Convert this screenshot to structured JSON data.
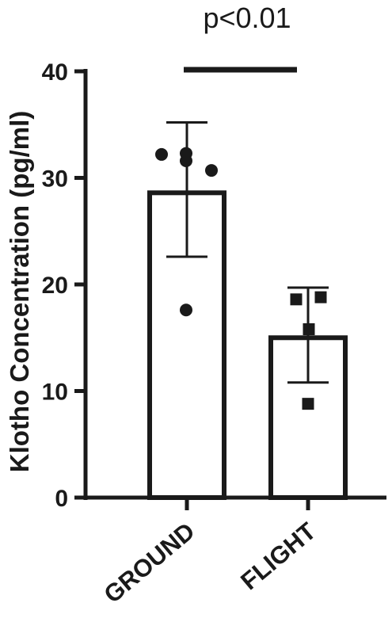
{
  "chart_data": {
    "type": "bar",
    "ylabel": "Klotho Concentration (pg/ml)",
    "ylim": [
      0,
      40
    ],
    "yticks": [
      0,
      10,
      20,
      30,
      40
    ],
    "categories": [
      "GROUND",
      "FLIGHT"
    ],
    "values": [
      28.6,
      15.0
    ],
    "error": [
      {
        "lower": 22.6,
        "upper": 35.2
      },
      {
        "lower": 10.8,
        "upper": 19.7
      }
    ],
    "points": [
      {
        "category": "GROUND",
        "marker": "circle",
        "values": [
          32.2,
          32.3,
          31.6,
          30.7,
          17.6
        ]
      },
      {
        "category": "FLIGHT",
        "marker": "square",
        "values": [
          18.6,
          18.8,
          15.8,
          8.8
        ]
      }
    ],
    "annotation": {
      "text": "p<0.01",
      "from": "GROUND",
      "to": "FLIGHT"
    },
    "grid": false,
    "colors": {
      "ink": "#1a1a1a",
      "bar_fill": "#ffffff"
    }
  }
}
